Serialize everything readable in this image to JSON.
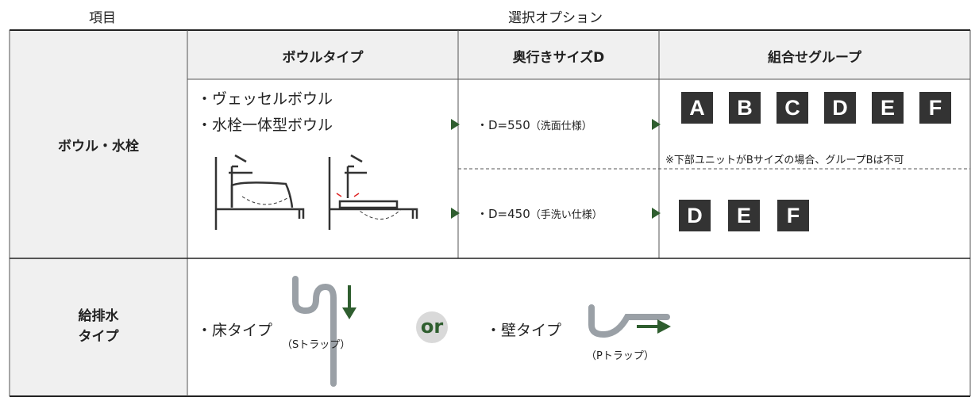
{
  "header": {
    "item": "項目",
    "options": "選択オプション"
  },
  "table": {
    "columns": [
      "ボウルタイプ",
      "奥行きサイズD",
      "組合せグループ"
    ],
    "rows": [
      {
        "label": "ボウル・水栓",
        "bowl_types": [
          "・ヴェッセルボウル",
          "・水栓一体型ボウル"
        ],
        "depths": [
          {
            "size": "・D=550",
            "use": "（洗面仕様）",
            "groups": [
              "A",
              "B",
              "C",
              "D",
              "E",
              "F"
            ],
            "note": "※下部ユニットがBサイズの場合、グループBは不可"
          },
          {
            "size": "・D=450",
            "use": "（手洗い仕様）",
            "groups": [
              "D",
              "E",
              "F"
            ]
          }
        ]
      },
      {
        "label": [
          "給排水",
          "タイプ"
        ],
        "options": [
          {
            "name": "・床タイプ",
            "trap": "（Sトラップ）"
          },
          {
            "name": "・壁タイプ",
            "trap": "（Pトラップ）"
          }
        ],
        "separator": "or"
      }
    ]
  }
}
